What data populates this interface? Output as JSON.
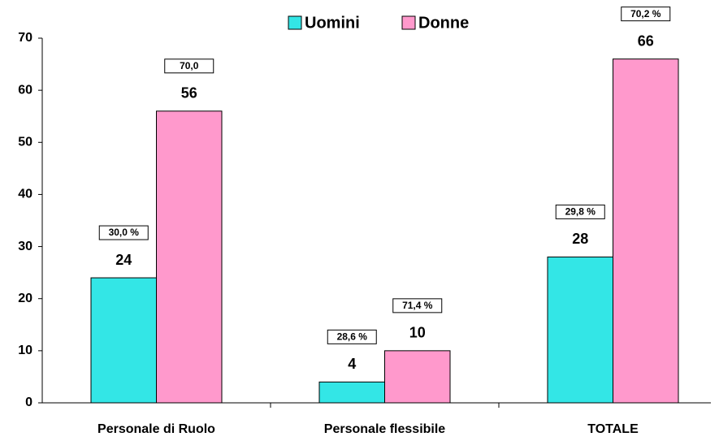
{
  "chart_data": {
    "type": "bar",
    "categories": [
      "Personale di Ruolo",
      "Personale flessibile",
      "TOTALE"
    ],
    "series": [
      {
        "name": "Uomini",
        "color": "#33e6e6",
        "values": [
          24,
          4,
          28
        ],
        "share_labels": [
          "30,0 %",
          "28,6 %",
          "29,8 %"
        ]
      },
      {
        "name": "Donne",
        "color": "#ff99cc",
        "values": [
          56,
          10,
          66
        ],
        "share_labels": [
          "70,0",
          "71,4 %",
          "70,2 %"
        ]
      }
    ],
    "ylim": [
      0,
      70
    ],
    "yticks": [
      0,
      10,
      20,
      30,
      40,
      50,
      60,
      70
    ],
    "grid": false,
    "legend": "top"
  }
}
